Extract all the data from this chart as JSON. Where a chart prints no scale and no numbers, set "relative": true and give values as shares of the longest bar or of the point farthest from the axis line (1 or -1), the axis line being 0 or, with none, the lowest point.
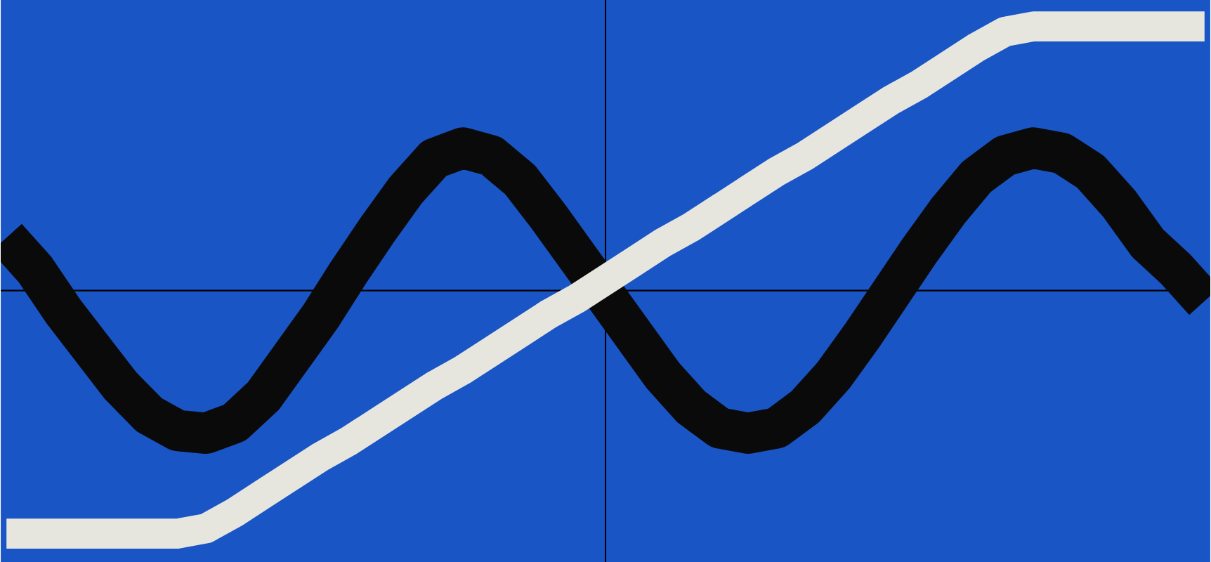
{
  "chart_data": {
    "type": "line",
    "relative": true,
    "categories": [
      null,
      null,
      null,
      null,
      null,
      null,
      null,
      null,
      null,
      null,
      null,
      null,
      null,
      null,
      null,
      null,
      null,
      null,
      null,
      null,
      null,
      null,
      null,
      null,
      null,
      null,
      null,
      null,
      null,
      null,
      null,
      null,
      null,
      null,
      null,
      null,
      null,
      null,
      null,
      null,
      null,
      null,
      null
    ],
    "series": [
      {
        "color": "#0a0a0a",
        "values": [
          0.2,
          0.08,
          -0.08,
          -0.22,
          -0.36,
          -0.47,
          -0.53,
          -0.54,
          -0.5,
          -0.4,
          -0.25,
          -0.1,
          0.07,
          0.23,
          0.38,
          0.5,
          0.54,
          0.51,
          0.42,
          0.28,
          0.13,
          -0.02,
          -0.17,
          -0.32,
          -0.44,
          -0.52,
          -0.54,
          -0.52,
          -0.44,
          -0.32,
          -0.17,
          -0.01,
          0.15,
          0.3,
          0.43,
          0.51,
          0.54,
          0.52,
          0.45,
          0.33,
          0.18,
          0.08,
          -0.04
        ]
      },
      {
        "color": "#e6e6df",
        "values": [
          -0.92,
          -0.92,
          -0.92,
          -0.92,
          -0.92,
          -0.92,
          -0.92,
          -0.9,
          -0.84,
          -0.77,
          -0.7,
          -0.63,
          -0.57,
          -0.5,
          -0.43,
          -0.36,
          -0.3,
          -0.23,
          -0.16,
          -0.09,
          -0.03,
          0.04,
          0.11,
          0.18,
          0.24,
          0.31,
          0.38,
          0.45,
          0.51,
          0.58,
          0.65,
          0.72,
          0.78,
          0.85,
          0.92,
          0.98,
          1,
          1,
          1,
          1,
          1,
          1,
          1
        ]
      }
    ]
  }
}
